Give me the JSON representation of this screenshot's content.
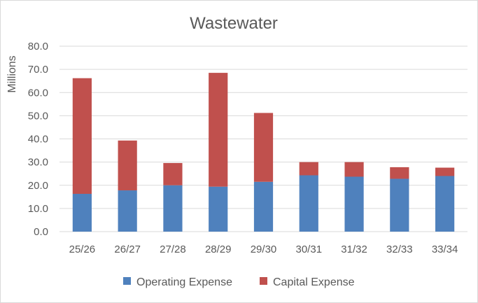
{
  "chart_data": {
    "type": "bar",
    "stacked": true,
    "title": "Wastewater",
    "xlabel": "",
    "ylabel": "Millions",
    "ylim": [
      0,
      80
    ],
    "yticks": [
      "0.0",
      "10.0",
      "20.0",
      "30.0",
      "40.0",
      "50.0",
      "60.0",
      "70.0",
      "80.0"
    ],
    "categories": [
      "25/26",
      "26/27",
      "27/28",
      "28/29",
      "29/30",
      "30/31",
      "31/32",
      "32/33",
      "33/34"
    ],
    "series": [
      {
        "name": "Operating Expense",
        "color": "#4f81bd",
        "values": [
          16.3,
          17.8,
          20.0,
          19.4,
          21.5,
          24.3,
          23.7,
          22.8,
          24.0
        ]
      },
      {
        "name": "Capital Expense",
        "color": "#c0504d",
        "values": [
          49.9,
          21.5,
          9.6,
          49.1,
          29.7,
          5.7,
          6.3,
          5.0,
          3.6
        ]
      }
    ],
    "grid": true,
    "gridColor": "#d9d9d9",
    "legend": "bottom"
  }
}
